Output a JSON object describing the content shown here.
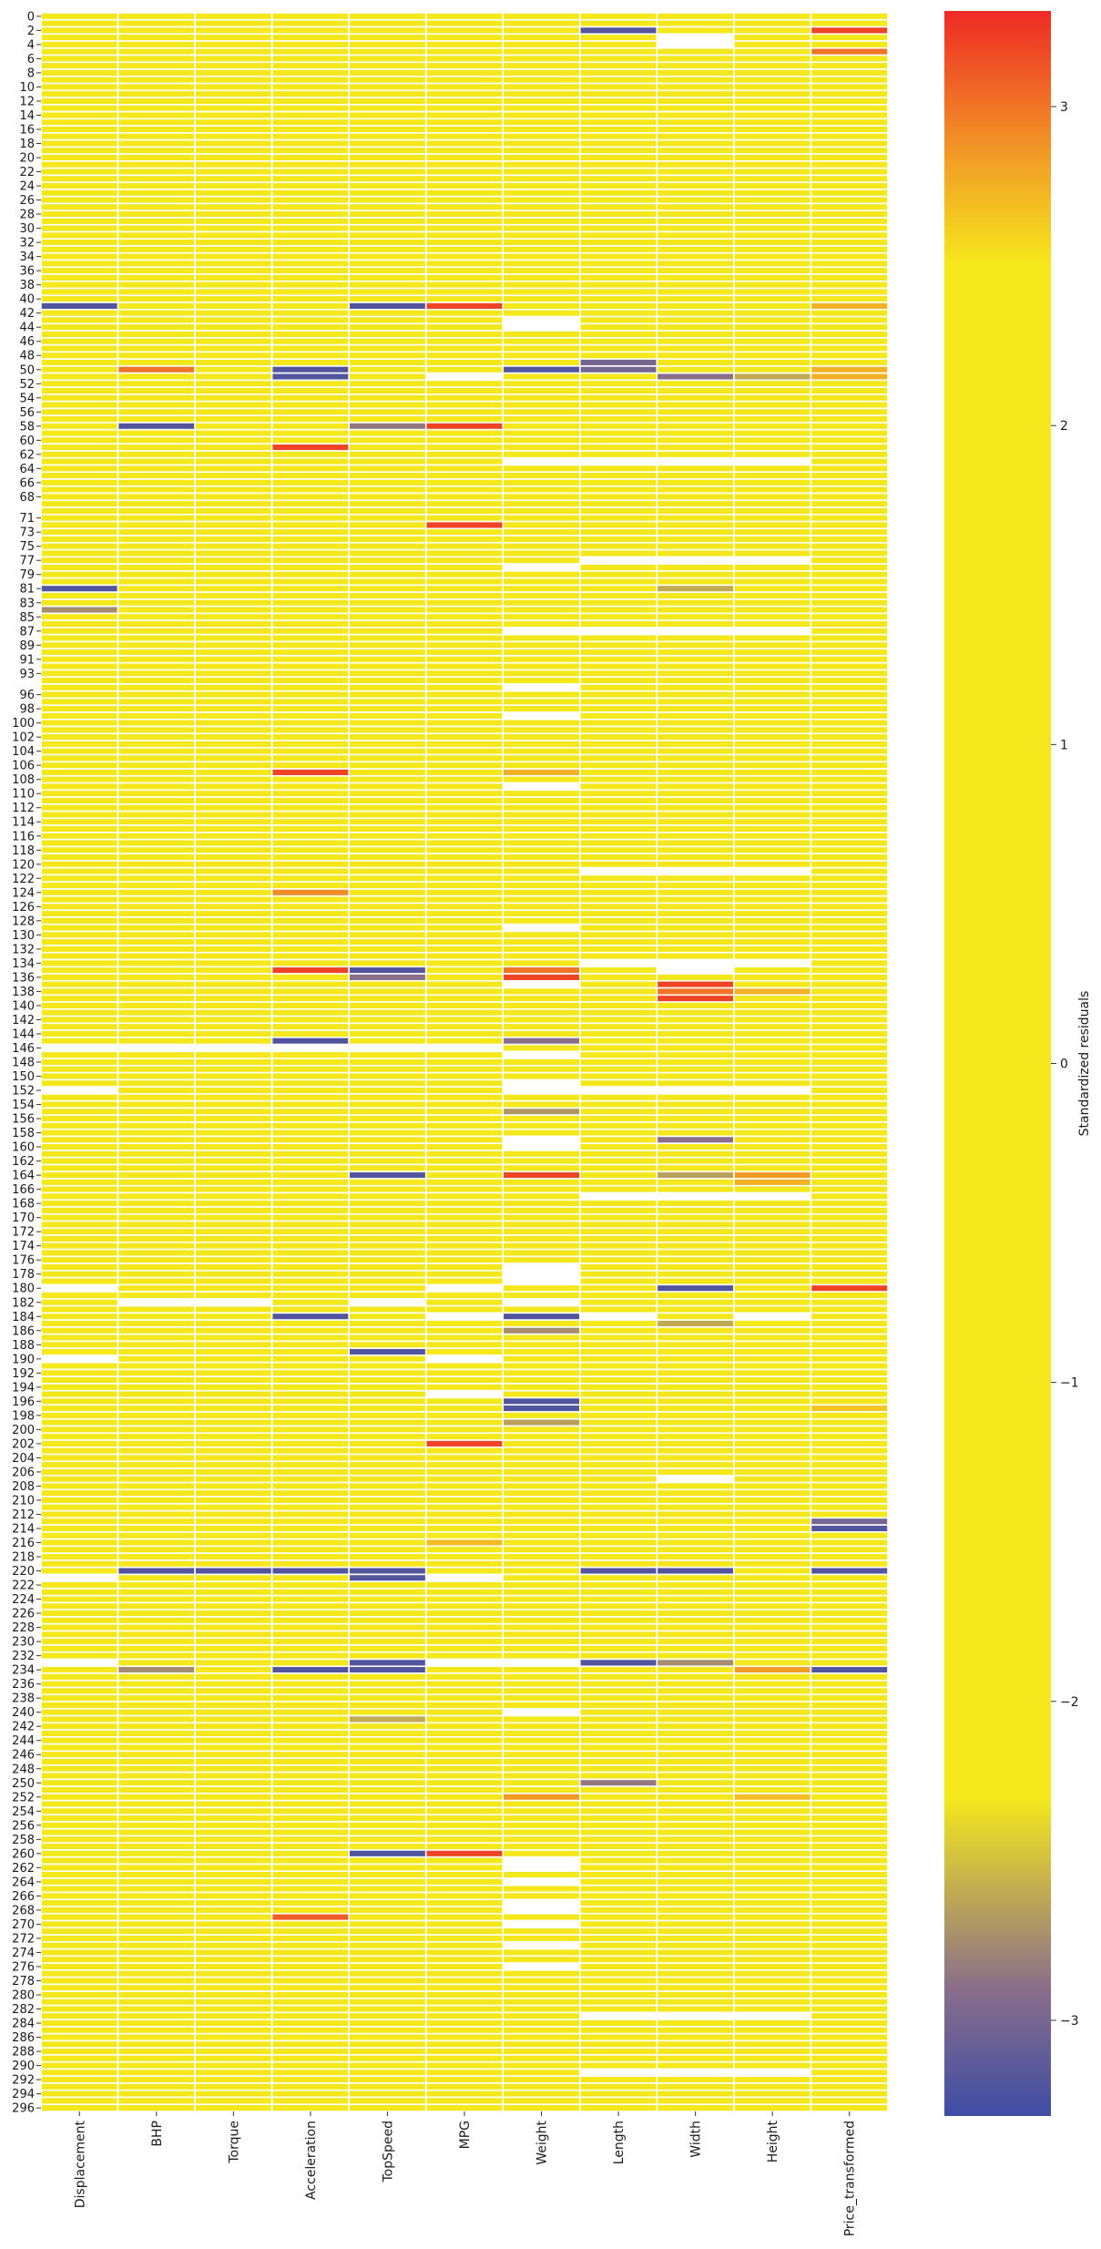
{
  "chart_data": {
    "type": "heatmap",
    "title": "",
    "xlabel": "",
    "ylabel": "",
    "columns": [
      "Displacement",
      "BHP",
      "Torque",
      "Acceleration",
      "TopSpeed",
      "MPG",
      "Weight",
      "Length",
      "Width",
      "Height",
      "Price_transformed"
    ],
    "row_range": [
      0,
      296
    ],
    "row_tick_labels": [
      "0",
      "2",
      "4",
      "6",
      "8",
      "10",
      "12",
      "14",
      "16",
      "18",
      "20",
      "22",
      "24",
      "26",
      "28",
      "30",
      "32",
      "34",
      "36",
      "38",
      "40",
      "42",
      "44",
      "46",
      "48",
      "50",
      "52",
      "54",
      "56",
      "58",
      "60",
      "62",
      "64",
      "66",
      "68",
      "71",
      "73",
      "75",
      "77",
      "79",
      "81",
      "83",
      "85",
      "87",
      "89",
      "91",
      "93",
      "96",
      "98",
      "100",
      "102",
      "104",
      "106",
      "108",
      "110",
      "112",
      "114",
      "116",
      "118",
      "120",
      "122",
      "124",
      "126",
      "128",
      "130",
      "132",
      "134",
      "136",
      "138",
      "140",
      "142",
      "144",
      "146",
      "148",
      "150",
      "152",
      "154",
      "156",
      "158",
      "160",
      "162",
      "164",
      "166",
      "168",
      "170",
      "172",
      "174",
      "176",
      "178",
      "180",
      "182",
      "184",
      "186",
      "188",
      "190",
      "192",
      "194",
      "196",
      "198",
      "200",
      "202",
      "204",
      "206",
      "208",
      "210",
      "212",
      "214",
      "216",
      "218",
      "220",
      "222",
      "224",
      "226",
      "228",
      "230",
      "232",
      "234",
      "236",
      "238",
      "240",
      "242",
      "244",
      "246",
      "248",
      "250",
      "252",
      "254",
      "256",
      "258",
      "260",
      "262",
      "264",
      "266",
      "268",
      "270",
      "272",
      "274",
      "276",
      "278",
      "280",
      "282",
      "284",
      "286",
      "288",
      "290",
      "292",
      "294",
      "296"
    ],
    "default_value": 0,
    "missing_color": "#ffffff",
    "colorbar": {
      "label": "Standardized residuals",
      "range": [
        -3.3,
        3.3
      ],
      "ticks": [
        -3,
        -2,
        -1,
        0,
        1,
        2,
        3
      ],
      "tick_labels": [
        "−3",
        "−2",
        "−1",
        "0",
        "1",
        "2",
        "3"
      ],
      "colors": [
        {
          "v": -3.3,
          "c": "#3f4da5"
        },
        {
          "v": -2.9,
          "c": "#8a6e8a"
        },
        {
          "v": -2.55,
          "c": "#c9b54a"
        },
        {
          "v": -2.3,
          "c": "#f4e81c"
        },
        {
          "v": 2.5,
          "c": "#f4e81c"
        },
        {
          "v": 2.8,
          "c": "#f2a626"
        },
        {
          "v": 3.3,
          "c": "#ee2a26"
        }
      ]
    },
    "outliers": [
      {
        "row": 2,
        "col": "Length",
        "value": -3.2
      },
      {
        "row": 2,
        "col": "Price_transformed",
        "value": 3.2
      },
      {
        "row": 5,
        "col": "Price_transformed",
        "value": 3.0
      },
      {
        "row": 41,
        "col": "Displacement",
        "value": -3.2
      },
      {
        "row": 41,
        "col": "TopSpeed",
        "value": -3.2
      },
      {
        "row": 41,
        "col": "MPG",
        "value": 3.2
      },
      {
        "row": 41,
        "col": "Price_transformed",
        "value": 2.75
      },
      {
        "row": 49,
        "col": "Length",
        "value": -3.0
      },
      {
        "row": 50,
        "col": "BHP",
        "value": 3.0
      },
      {
        "row": 50,
        "col": "Acceleration",
        "value": -3.2
      },
      {
        "row": 50,
        "col": "Weight",
        "value": -3.2
      },
      {
        "row": 50,
        "col": "Length",
        "value": -3.0
      },
      {
        "row": 50,
        "col": "Price_transformed",
        "value": 2.75
      },
      {
        "row": 51,
        "col": "Acceleration",
        "value": -3.2
      },
      {
        "row": 51,
        "col": "Width",
        "value": -2.9
      },
      {
        "row": 51,
        "col": "Height",
        "value": -2.6
      },
      {
        "row": 51,
        "col": "Price_transformed",
        "value": 2.75
      },
      {
        "row": 58,
        "col": "BHP",
        "value": -3.2
      },
      {
        "row": 58,
        "col": "TopSpeed",
        "value": -2.85
      },
      {
        "row": 58,
        "col": "MPG",
        "value": 3.2
      },
      {
        "row": 61,
        "col": "Acceleration",
        "value": 3.2
      },
      {
        "row": 72,
        "col": "MPG",
        "value": 3.2
      },
      {
        "row": 81,
        "col": "Displacement",
        "value": -3.2
      },
      {
        "row": 81,
        "col": "Width",
        "value": -2.6
      },
      {
        "row": 84,
        "col": "Displacement",
        "value": -2.75
      },
      {
        "row": 107,
        "col": "Acceleration",
        "value": 3.2
      },
      {
        "row": 107,
        "col": "Weight",
        "value": 2.75
      },
      {
        "row": 124,
        "col": "Acceleration",
        "value": 2.9
      },
      {
        "row": 135,
        "col": "Acceleration",
        "value": 3.2
      },
      {
        "row": 135,
        "col": "TopSpeed",
        "value": -3.2
      },
      {
        "row": 135,
        "col": "Weight",
        "value": 3.0
      },
      {
        "row": 136,
        "col": "TopSpeed",
        "value": -2.9
      },
      {
        "row": 136,
        "col": "Weight",
        "value": 3.2
      },
      {
        "row": 137,
        "col": "Width",
        "value": 3.2
      },
      {
        "row": 138,
        "col": "Width",
        "value": 3.0
      },
      {
        "row": 138,
        "col": "Height",
        "value": 2.75
      },
      {
        "row": 139,
        "col": "Width",
        "value": 3.2
      },
      {
        "row": 145,
        "col": "Acceleration",
        "value": -3.2
      },
      {
        "row": 145,
        "col": "Weight",
        "value": -2.9
      },
      {
        "row": 155,
        "col": "Weight",
        "value": -2.7
      },
      {
        "row": 159,
        "col": "Width",
        "value": -2.9
      },
      {
        "row": 164,
        "col": "TopSpeed",
        "value": -3.2
      },
      {
        "row": 164,
        "col": "Weight",
        "value": 3.2
      },
      {
        "row": 164,
        "col": "Width",
        "value": -2.65
      },
      {
        "row": 164,
        "col": "Height",
        "value": 2.85
      },
      {
        "row": 165,
        "col": "Height",
        "value": 2.75
      },
      {
        "row": 180,
        "col": "Width",
        "value": -3.2
      },
      {
        "row": 180,
        "col": "Price_transformed",
        "value": 3.2
      },
      {
        "row": 184,
        "col": "Acceleration",
        "value": -3.2
      },
      {
        "row": 184,
        "col": "Weight",
        "value": -3.2
      },
      {
        "row": 185,
        "col": "Width",
        "value": -2.6
      },
      {
        "row": 186,
        "col": "Weight",
        "value": -2.75
      },
      {
        "row": 189,
        "col": "TopSpeed",
        "value": -3.2
      },
      {
        "row": 196,
        "col": "Weight",
        "value": -3.2
      },
      {
        "row": 197,
        "col": "Weight",
        "value": -3.2
      },
      {
        "row": 197,
        "col": "Price_transformed",
        "value": 2.65
      },
      {
        "row": 199,
        "col": "Weight",
        "value": -2.65
      },
      {
        "row": 202,
        "col": "MPG",
        "value": 3.2
      },
      {
        "row": 213,
        "col": "Price_transformed",
        "value": -3.0
      },
      {
        "row": 214,
        "col": "Price_transformed",
        "value": -3.2
      },
      {
        "row": 216,
        "col": "MPG",
        "value": 2.7
      },
      {
        "row": 220,
        "col": "BHP",
        "value": -3.2
      },
      {
        "row": 220,
        "col": "Torque",
        "value": -3.2
      },
      {
        "row": 220,
        "col": "Acceleration",
        "value": -3.2
      },
      {
        "row": 220,
        "col": "TopSpeed",
        "value": -3.2
      },
      {
        "row": 220,
        "col": "Length",
        "value": -3.2
      },
      {
        "row": 220,
        "col": "Width",
        "value": -3.2
      },
      {
        "row": 220,
        "col": "Price_transformed",
        "value": -3.2
      },
      {
        "row": 221,
        "col": "TopSpeed",
        "value": -3.2
      },
      {
        "row": 233,
        "col": "TopSpeed",
        "value": -3.2
      },
      {
        "row": 233,
        "col": "Length",
        "value": -3.2
      },
      {
        "row": 233,
        "col": "Width",
        "value": -2.75
      },
      {
        "row": 234,
        "col": "BHP",
        "value": -2.75
      },
      {
        "row": 234,
        "col": "Acceleration",
        "value": -3.2
      },
      {
        "row": 234,
        "col": "TopSpeed",
        "value": -3.2
      },
      {
        "row": 234,
        "col": "Height",
        "value": 2.85
      },
      {
        "row": 234,
        "col": "Price_transformed",
        "value": -3.2
      },
      {
        "row": 241,
        "col": "TopSpeed",
        "value": -2.6
      },
      {
        "row": 250,
        "col": "Length",
        "value": -2.85
      },
      {
        "row": 252,
        "col": "Weight",
        "value": 2.85
      },
      {
        "row": 252,
        "col": "Height",
        "value": 2.7
      },
      {
        "row": 260,
        "col": "TopSpeed",
        "value": -3.2
      },
      {
        "row": 260,
        "col": "MPG",
        "value": 3.2
      },
      {
        "row": 269,
        "col": "Acceleration",
        "value": 3.1
      }
    ],
    "missing": [
      {
        "row": 3,
        "col": "Width"
      },
      {
        "row": 4,
        "col": "Width"
      },
      {
        "row": 43,
        "col": "Weight"
      },
      {
        "row": 44,
        "col": "Weight"
      },
      {
        "row": 51,
        "col": "MPG"
      },
      {
        "row": 63,
        "col": "Weight"
      },
      {
        "row": 63,
        "col": "Length"
      },
      {
        "row": 63,
        "col": "Width"
      },
      {
        "row": 63,
        "col": "Height"
      },
      {
        "row": 77,
        "col": "Length"
      },
      {
        "row": 77,
        "col": "Width"
      },
      {
        "row": 77,
        "col": "Height"
      },
      {
        "row": 78,
        "col": "Weight"
      },
      {
        "row": 87,
        "col": "Weight"
      },
      {
        "row": 87,
        "col": "Length"
      },
      {
        "row": 87,
        "col": "Width"
      },
      {
        "row": 87,
        "col": "Height"
      },
      {
        "row": 95,
        "col": "Weight"
      },
      {
        "row": 99,
        "col": "Weight"
      },
      {
        "row": 109,
        "col": "Weight"
      },
      {
        "row": 121,
        "col": "Length"
      },
      {
        "row": 121,
        "col": "Width"
      },
      {
        "row": 121,
        "col": "Height"
      },
      {
        "row": 129,
        "col": "Weight"
      },
      {
        "row": 134,
        "col": "Length"
      },
      {
        "row": 134,
        "col": "Width"
      },
      {
        "row": 134,
        "col": "Height"
      },
      {
        "row": 135,
        "col": "Width"
      },
      {
        "row": 137,
        "col": "Weight"
      },
      {
        "row": 146,
        "col": "Displacement"
      },
      {
        "row": 146,
        "col": "BHP"
      },
      {
        "row": 146,
        "col": "Torque"
      },
      {
        "row": 146,
        "col": "Acceleration"
      },
      {
        "row": 146,
        "col": "TopSpeed"
      },
      {
        "row": 146,
        "col": "MPG"
      },
      {
        "row": 147,
        "col": "Weight"
      },
      {
        "row": 151,
        "col": "Weight"
      },
      {
        "row": 152,
        "col": "Displacement"
      },
      {
        "row": 152,
        "col": "Weight"
      },
      {
        "row": 152,
        "col": "Length"
      },
      {
        "row": 152,
        "col": "Width"
      },
      {
        "row": 152,
        "col": "Height"
      },
      {
        "row": 159,
        "col": "Weight"
      },
      {
        "row": 160,
        "col": "Weight"
      },
      {
        "row": 167,
        "col": "Length"
      },
      {
        "row": 167,
        "col": "Width"
      },
      {
        "row": 167,
        "col": "Height"
      },
      {
        "row": 177,
        "col": "Weight"
      },
      {
        "row": 178,
        "col": "Weight"
      },
      {
        "row": 179,
        "col": "Weight"
      },
      {
        "row": 180,
        "col": "Displacement"
      },
      {
        "row": 180,
        "col": "MPG"
      },
      {
        "row": 182,
        "col": "BHP"
      },
      {
        "row": 182,
        "col": "Torque"
      },
      {
        "row": 182,
        "col": "TopSpeed"
      },
      {
        "row": 182,
        "col": "Weight"
      },
      {
        "row": 184,
        "col": "MPG"
      },
      {
        "row": 184,
        "col": "Length"
      },
      {
        "row": 184,
        "col": "Height"
      },
      {
        "row": 190,
        "col": "Displacement"
      },
      {
        "row": 190,
        "col": "MPG"
      },
      {
        "row": 195,
        "col": "MPG"
      },
      {
        "row": 207,
        "col": "Width"
      },
      {
        "row": 221,
        "col": "Displacement"
      },
      {
        "row": 221,
        "col": "MPG"
      },
      {
        "row": 233,
        "col": "Displacement"
      },
      {
        "row": 233,
        "col": "MPG"
      },
      {
        "row": 233,
        "col": "Weight"
      },
      {
        "row": 240,
        "col": "Weight"
      },
      {
        "row": 261,
        "col": "Weight"
      },
      {
        "row": 262,
        "col": "Weight"
      },
      {
        "row": 264,
        "col": "Weight"
      },
      {
        "row": 267,
        "col": "Weight"
      },
      {
        "row": 268,
        "col": "Weight"
      },
      {
        "row": 270,
        "col": "Weight"
      },
      {
        "row": 273,
        "col": "Weight"
      },
      {
        "row": 276,
        "col": "Weight"
      },
      {
        "row": 283,
        "col": "Length"
      },
      {
        "row": 283,
        "col": "Width"
      },
      {
        "row": 283,
        "col": "Height"
      },
      {
        "row": 291,
        "col": "Length"
      },
      {
        "row": 291,
        "col": "Width"
      },
      {
        "row": 291,
        "col": "Height"
      }
    ]
  }
}
